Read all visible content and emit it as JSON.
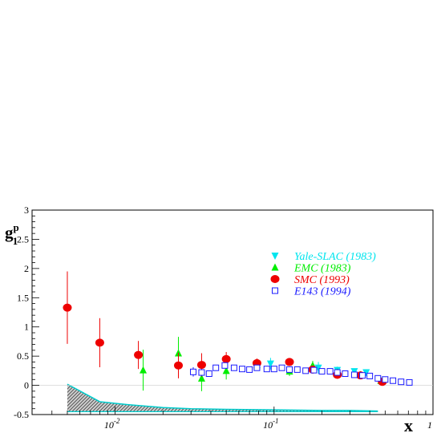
{
  "chart_data": {
    "type": "scatter",
    "x_scale": "log",
    "xlim": [
      0.003,
      1
    ],
    "ylim": [
      -0.5,
      3
    ],
    "xlabel": "x",
    "ylabel": {
      "base": "g",
      "sup": "p",
      "sub": "1"
    },
    "grid": false,
    "legend_position": "top-right",
    "y_ticks": [
      {
        "value": -0.5,
        "label": "-0.5"
      },
      {
        "value": 0,
        "label": "0"
      },
      {
        "value": 0.5,
        "label": "0.5"
      },
      {
        "value": 1,
        "label": "1"
      },
      {
        "value": 1.5,
        "label": "1.5"
      },
      {
        "value": 2,
        "label": "2"
      },
      {
        "value": 2.5,
        "label": "2.5"
      },
      {
        "value": 3,
        "label": "3"
      }
    ],
    "x_ticks": [
      {
        "value": 0.01,
        "base": "10",
        "exp": "-2"
      },
      {
        "value": 0.1,
        "base": "10",
        "exp": "-1"
      },
      {
        "value": 1,
        "base": "1",
        "exp": ""
      }
    ],
    "series": [
      {
        "name": "Yale-SLAC (1983)",
        "color": "#00e5ee",
        "marker": "triangle-down",
        "points": [
          {
            "x": 0.095,
            "y": 0.37,
            "err": 0.1
          },
          {
            "x": 0.19,
            "y": 0.3,
            "err": 0.1
          },
          {
            "x": 0.25,
            "y": 0.26,
            "err": 0.06
          },
          {
            "x": 0.32,
            "y": 0.24,
            "err": 0.05
          },
          {
            "x": 0.38,
            "y": 0.22,
            "err": 0.05
          }
        ]
      },
      {
        "name": "EMC (1983)",
        "color": "#00ee00",
        "marker": "triangle-up",
        "points": [
          {
            "x": 0.015,
            "y": 0.26,
            "err": 0.35
          },
          {
            "x": 0.025,
            "y": 0.55,
            "err": 0.28
          },
          {
            "x": 0.035,
            "y": 0.12,
            "err": 0.22
          },
          {
            "x": 0.05,
            "y": 0.25,
            "err": 0.15
          },
          {
            "x": 0.078,
            "y": 0.35,
            "err": 0.1
          },
          {
            "x": 0.125,
            "y": 0.24,
            "err": 0.08
          },
          {
            "x": 0.175,
            "y": 0.34,
            "err": 0.08
          },
          {
            "x": 0.25,
            "y": 0.22,
            "err": 0.06
          },
          {
            "x": 0.35,
            "y": 0.18,
            "err": 0.06
          },
          {
            "x": 0.47,
            "y": 0.08,
            "err": 0.05
          }
        ]
      },
      {
        "name": "SMC (1993)",
        "color": "#ee0000",
        "marker": "circle",
        "points": [
          {
            "x": 0.005,
            "y": 1.33,
            "err": 0.62
          },
          {
            "x": 0.008,
            "y": 0.73,
            "err": 0.42
          },
          {
            "x": 0.014,
            "y": 0.52,
            "err": 0.24
          },
          {
            "x": 0.025,
            "y": 0.34,
            "err": 0.22
          },
          {
            "x": 0.035,
            "y": 0.35,
            "err": 0.2
          },
          {
            "x": 0.05,
            "y": 0.45,
            "err": 0.12
          },
          {
            "x": 0.078,
            "y": 0.38,
            "err": 0.08
          },
          {
            "x": 0.125,
            "y": 0.4,
            "err": 0.06
          },
          {
            "x": 0.175,
            "y": 0.27,
            "err": 0.05
          },
          {
            "x": 0.25,
            "y": 0.18,
            "err": 0.04
          },
          {
            "x": 0.35,
            "y": 0.17,
            "err": 0.04
          },
          {
            "x": 0.48,
            "y": 0.06,
            "err": 0.03
          }
        ]
      },
      {
        "name": "E143 (1994)",
        "color": "#1a1aff",
        "marker": "square-open",
        "points": [
          {
            "x": 0.031,
            "y": 0.23,
            "err": 0.08
          },
          {
            "x": 0.035,
            "y": 0.22,
            "err": 0.06
          },
          {
            "x": 0.039,
            "y": 0.2,
            "err": 0.05
          },
          {
            "x": 0.043,
            "y": 0.3,
            "err": 0.05
          },
          {
            "x": 0.049,
            "y": 0.34,
            "err": 0.04
          },
          {
            "x": 0.056,
            "y": 0.3,
            "err": 0.04
          },
          {
            "x": 0.063,
            "y": 0.28,
            "err": 0.03
          },
          {
            "x": 0.07,
            "y": 0.27,
            "err": 0.03
          },
          {
            "x": 0.078,
            "y": 0.3,
            "err": 0.03
          },
          {
            "x": 0.09,
            "y": 0.28,
            "err": 0.03
          },
          {
            "x": 0.1,
            "y": 0.28,
            "err": 0.03
          },
          {
            "x": 0.112,
            "y": 0.3,
            "err": 0.03
          },
          {
            "x": 0.125,
            "y": 0.27,
            "err": 0.03
          },
          {
            "x": 0.14,
            "y": 0.27,
            "err": 0.02
          },
          {
            "x": 0.158,
            "y": 0.25,
            "err": 0.02
          },
          {
            "x": 0.178,
            "y": 0.26,
            "err": 0.02
          },
          {
            "x": 0.2,
            "y": 0.24,
            "err": 0.02
          },
          {
            "x": 0.225,
            "y": 0.24,
            "err": 0.02
          },
          {
            "x": 0.25,
            "y": 0.22,
            "err": 0.02
          },
          {
            "x": 0.28,
            "y": 0.2,
            "err": 0.02
          },
          {
            "x": 0.32,
            "y": 0.18,
            "err": 0.02
          },
          {
            "x": 0.36,
            "y": 0.17,
            "err": 0.02
          },
          {
            "x": 0.4,
            "y": 0.16,
            "err": 0.02
          },
          {
            "x": 0.45,
            "y": 0.12,
            "err": 0.02
          },
          {
            "x": 0.5,
            "y": 0.1,
            "err": 0.02
          },
          {
            "x": 0.56,
            "y": 0.08,
            "err": 0.02
          },
          {
            "x": 0.63,
            "y": 0.06,
            "err": 0.02
          },
          {
            "x": 0.71,
            "y": 0.05,
            "err": 0.02
          }
        ]
      }
    ],
    "systematic_band": {
      "fill": "#555555",
      "edge_color": "#00cccc",
      "baseline": -0.45,
      "x": [
        0.005,
        0.008,
        0.012,
        0.02,
        0.03,
        0.05,
        0.1,
        0.2,
        0.3,
        0.45
      ],
      "upper": [
        0.02,
        -0.28,
        -0.33,
        -0.38,
        -0.4,
        -0.41,
        -0.42,
        -0.43,
        -0.43,
        -0.44
      ]
    }
  }
}
